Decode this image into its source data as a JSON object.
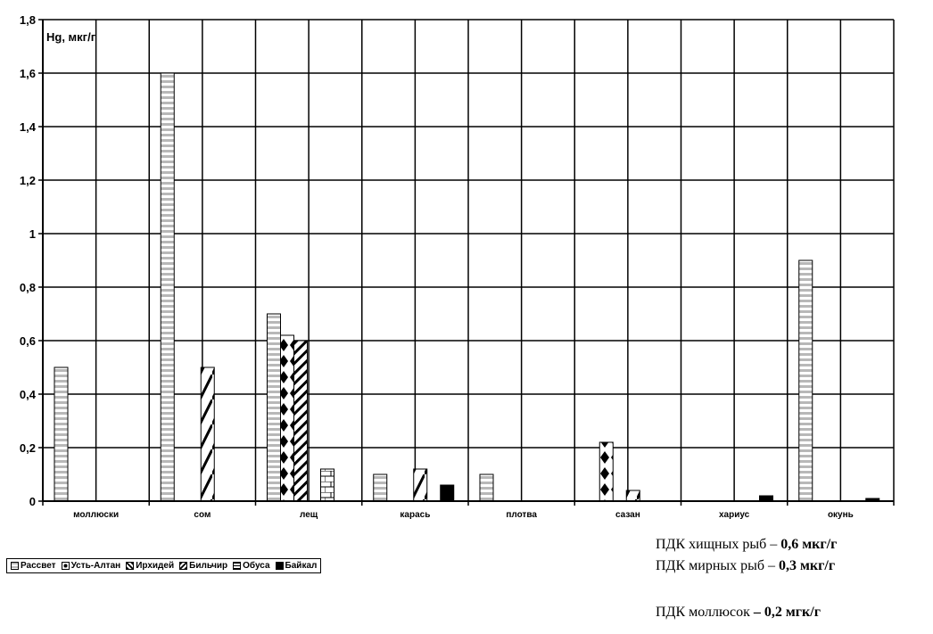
{
  "chart_data": {
    "type": "bar",
    "ylabel": "Hg, мкг/г",
    "ylim": [
      0,
      1.8
    ],
    "yticks": [
      "0",
      "0,2",
      "0,4",
      "0,6",
      "0,8",
      "1",
      "1,2",
      "1,4",
      "1,6",
      "1,8"
    ],
    "grid": true,
    "legend_position": "bottom-left",
    "categories": [
      "моллюски",
      "сом",
      "лещ",
      "карась",
      "плотва",
      "сазан",
      "хариус",
      "окунь"
    ],
    "series": [
      {
        "name": "Рассвет",
        "pattern": "hstripe",
        "values": [
          0.5,
          1.6,
          0.7,
          0.1,
          0.1,
          0,
          0,
          0.9
        ]
      },
      {
        "name": "Усть-Алтан",
        "pattern": "diamonds",
        "values": [
          0,
          0,
          0.62,
          0,
          0,
          0.22,
          0,
          0
        ]
      },
      {
        "name": "Ирхидей",
        "pattern": "diagonal",
        "values": [
          0,
          0,
          0.6,
          0,
          0,
          0,
          0,
          0
        ]
      },
      {
        "name": "Бильчир",
        "pattern": "zigzag",
        "values": [
          0,
          0.5,
          0,
          0.12,
          0,
          0.04,
          0,
          0
        ]
      },
      {
        "name": "Обуса",
        "pattern": "bricks",
        "values": [
          0,
          0,
          0.12,
          0,
          0,
          0,
          0,
          0
        ]
      },
      {
        "name": "Байкал",
        "pattern": "solid",
        "values": [
          0,
          0,
          0,
          0.06,
          0,
          0,
          0.02,
          0.01
        ]
      }
    ]
  },
  "notes": [
    {
      "label": "ПДК хищных рыб – ",
      "value": "0,6 мкг/г"
    },
    {
      "label": "ПДК мирных рыб – ",
      "value": "0,3 мкг/г"
    },
    {
      "label": "ПДК моллюсок ",
      "value": "– 0,2 мгк/г"
    }
  ]
}
